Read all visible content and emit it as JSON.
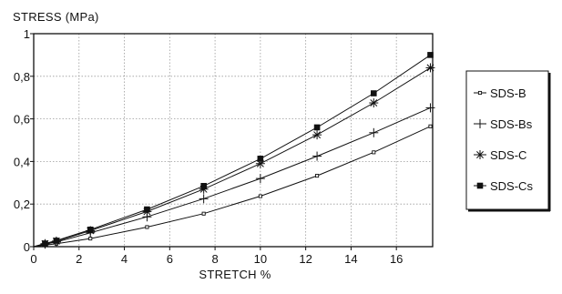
{
  "chart_data": {
    "type": "line",
    "ylabel": "STRESS (MPa)",
    "xlabel": "STRETCH %",
    "xlim": [
      0,
      17.6
    ],
    "ylim": [
      0,
      1
    ],
    "x_ticks": [
      0,
      2,
      4,
      6,
      8,
      10,
      12,
      14,
      16
    ],
    "x_tick_labels": [
      "0",
      "2",
      "4",
      "6",
      "8",
      "10",
      "12",
      "14",
      "16"
    ],
    "y_ticks": [
      0,
      0.2,
      0.4,
      0.6,
      0.8,
      1
    ],
    "y_tick_labels": [
      "0",
      "0,2",
      "0,4",
      "0,6",
      "0,8",
      "1"
    ],
    "grid": true,
    "legend_position": "right",
    "series": [
      {
        "name": "SDS-B",
        "marker": "small-square",
        "color": "#111111",
        "x": [
          0,
          0.5,
          1,
          2.5,
          5,
          7.5,
          10,
          12.5,
          15,
          17.5
        ],
        "y": [
          0,
          0.007,
          0.014,
          0.038,
          0.092,
          0.155,
          0.237,
          0.333,
          0.443,
          0.565
        ]
      },
      {
        "name": "SDS-Bs",
        "marker": "plus",
        "color": "#111111",
        "x": [
          0,
          0.5,
          1,
          2.5,
          5,
          7.5,
          10,
          12.5,
          15,
          17.5
        ],
        "y": [
          0,
          0.012,
          0.022,
          0.065,
          0.14,
          0.225,
          0.32,
          0.425,
          0.535,
          0.652
        ]
      },
      {
        "name": "SDS-C",
        "marker": "asterisk",
        "color": "#111111",
        "x": [
          0,
          0.5,
          1,
          2.5,
          5,
          7.5,
          10,
          12.5,
          15,
          17.5
        ],
        "y": [
          0,
          0.014,
          0.026,
          0.075,
          0.165,
          0.27,
          0.39,
          0.525,
          0.675,
          0.84
        ]
      },
      {
        "name": "SDS-Cs",
        "marker": "filled-square",
        "color": "#111111",
        "x": [
          0,
          0.5,
          1,
          2.5,
          5,
          7.5,
          10,
          12.5,
          15,
          17.5
        ],
        "y": [
          0,
          0.015,
          0.028,
          0.08,
          0.175,
          0.285,
          0.413,
          0.56,
          0.72,
          0.9
        ]
      }
    ]
  }
}
